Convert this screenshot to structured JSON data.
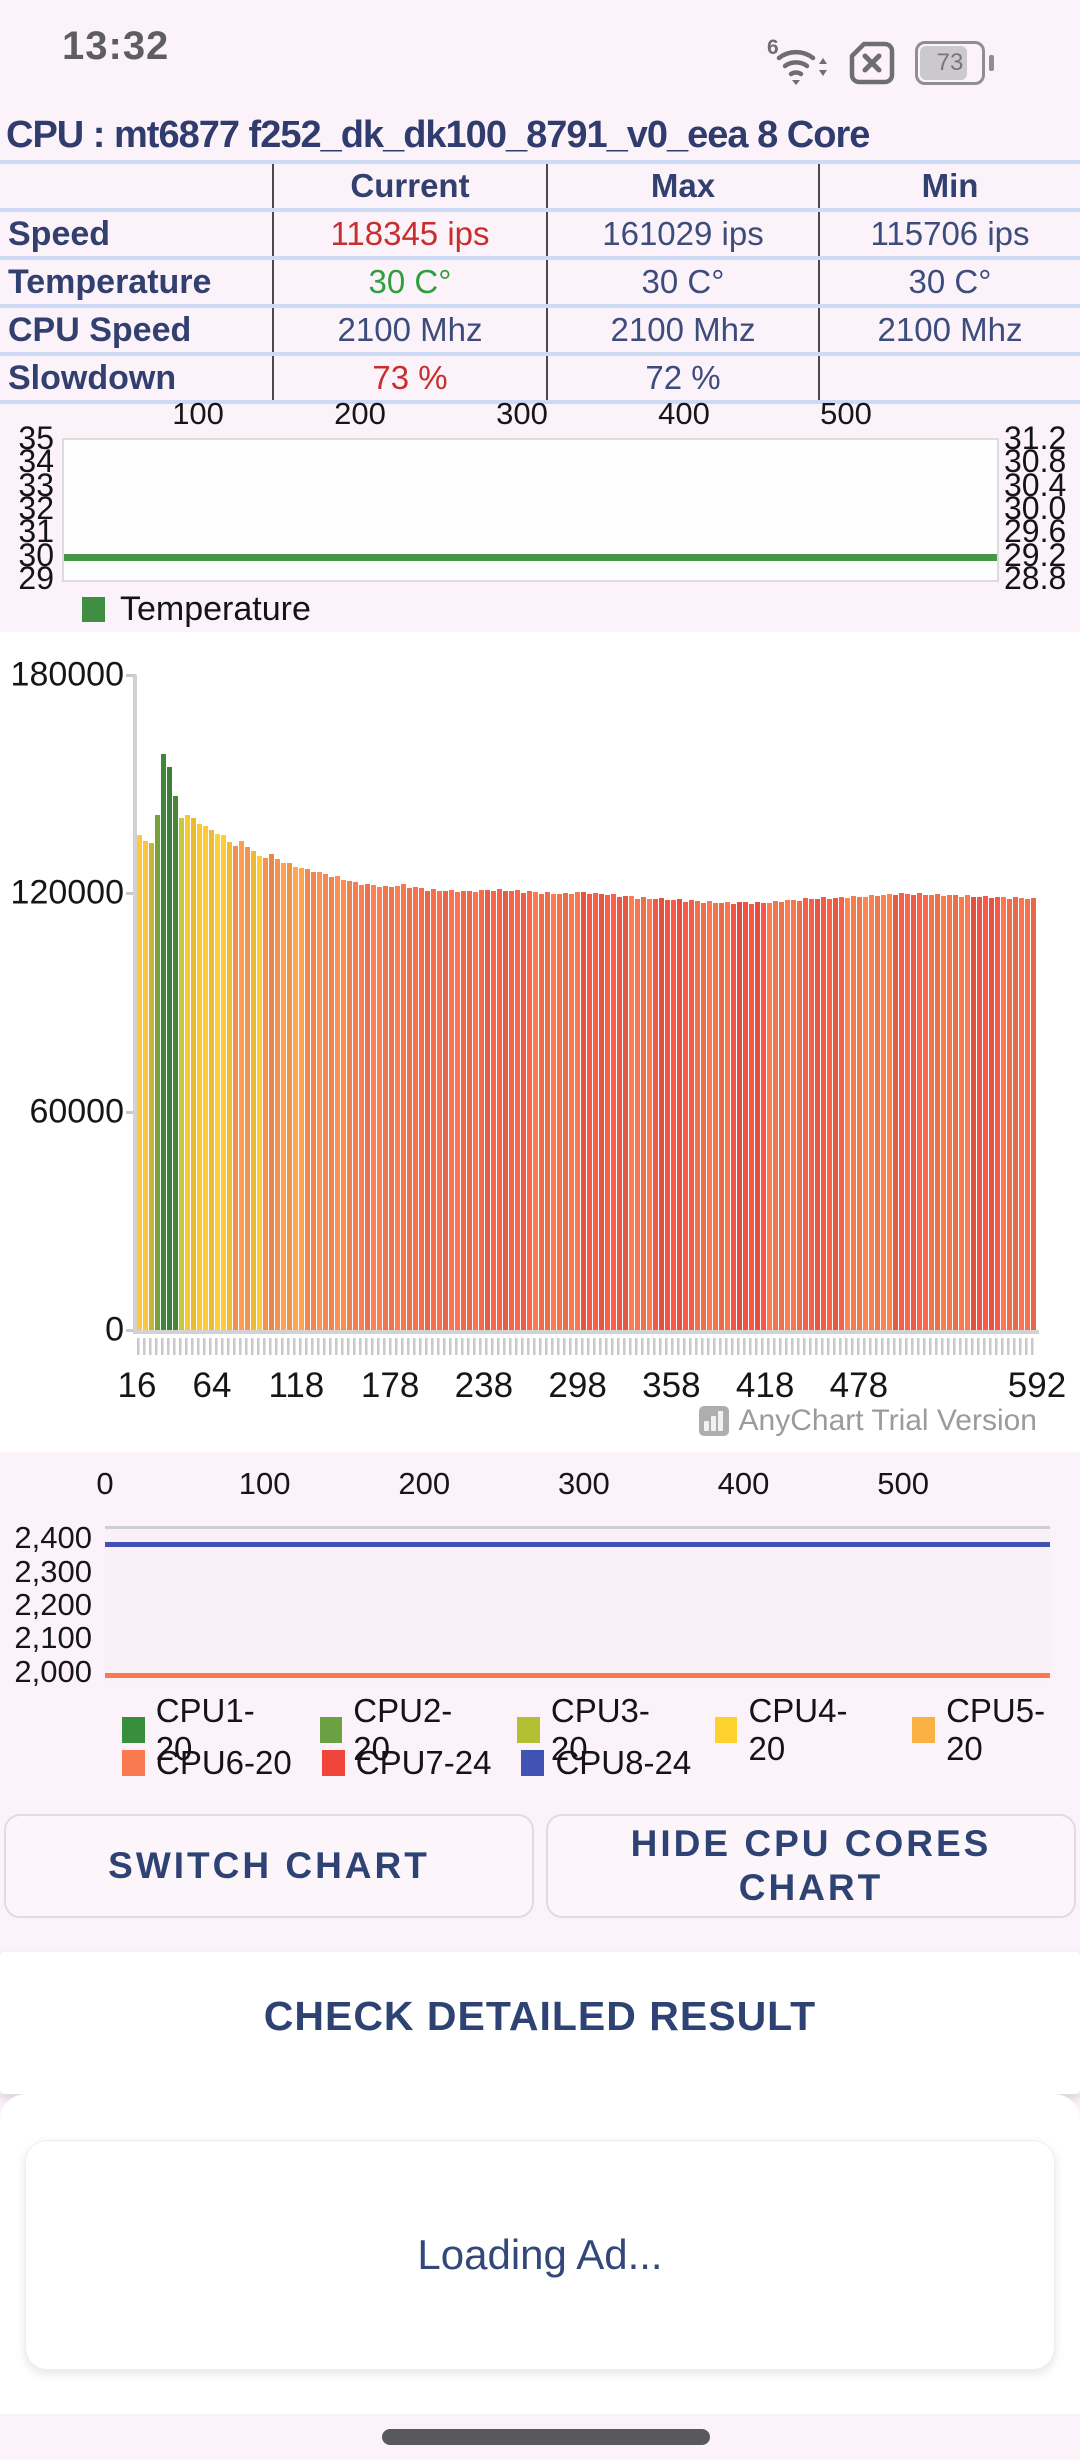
{
  "status_bar": {
    "time": "13:32",
    "battery_percent": "73",
    "icons": [
      "wifi-6-icon",
      "no-sim-icon",
      "battery-icon"
    ]
  },
  "header": {
    "title": "CPU : mt6877 f252_dk_dk100_8791_v0_eea 8 Core"
  },
  "colors": {
    "background": "#fcf3fa",
    "navy": "#32406f",
    "value_navy": "#3c4c7c",
    "alert_red": "#c62f2c",
    "ok_green": "#2f9e3c",
    "separator_blue": "#cddaf6",
    "temperature_line": "#439746",
    "watermark_gray": "#9b9b9b"
  },
  "results_table": {
    "columns": [
      "",
      "Current",
      "Max",
      "Min"
    ],
    "rows": [
      {
        "key": "speed",
        "label": "Speed",
        "current": "118345 ips",
        "max": "161029 ips",
        "min": "115706 ips",
        "current_color": "#c62f2c"
      },
      {
        "key": "temperature",
        "label": "Temperature",
        "current": "30 C°",
        "max": "30 C°",
        "min": "30 C°",
        "current_color": "#2f9e3c"
      },
      {
        "key": "cpu-speed",
        "label": "CPU Speed",
        "current": "2100 Mhz",
        "max": "2100 Mhz",
        "min": "2100 Mhz",
        "current_color": "#3c4c7c"
      },
      {
        "key": "slowdown",
        "label": "Slowdown",
        "current": "73 %",
        "max": "72 %",
        "min": "",
        "current_color": "#c62f2c"
      }
    ]
  },
  "chart_data": [
    {
      "type": "line",
      "name": "temperature-history",
      "xlim": [
        16,
        592
      ],
      "x_ticks": [
        100,
        200,
        300,
        400,
        500
      ],
      "y_left_ticks": [
        "35",
        "34",
        "33",
        "32",
        "31",
        "30",
        "29"
      ],
      "y_right_ticks": [
        "31.2",
        "30.8",
        "30.4",
        "30.0",
        "29.6",
        "29.2",
        "28.8"
      ],
      "ylim_left": [
        29,
        35
      ],
      "series": [
        {
          "name": "Temperature",
          "color": "#439746",
          "value": 30
        }
      ],
      "legend": [
        {
          "label": "Temperature",
          "color": "#3f8f43"
        }
      ],
      "grid": false,
      "legend_position": "bottom-left"
    },
    {
      "type": "bar",
      "name": "speed-history-ips",
      "xlim": [
        16,
        592
      ],
      "ylim": [
        0,
        180000
      ],
      "y_ticks": [
        180000,
        120000,
        60000,
        0
      ],
      "x_ticks": [
        16,
        64,
        118,
        178,
        238,
        298,
        358,
        418,
        478,
        592
      ],
      "bar_count": 150,
      "peak_value": 161000,
      "points": [
        [
          16,
          136000
        ],
        [
          20,
          134000
        ],
        [
          23,
          133500
        ],
        [
          26,
          136000
        ],
        [
          29,
          146000
        ],
        [
          32,
          161000
        ],
        [
          34,
          159000
        ],
        [
          36,
          153000
        ],
        [
          38,
          149000
        ],
        [
          40,
          144500
        ],
        [
          43,
          141000
        ],
        [
          47,
          141500
        ],
        [
          52,
          140000
        ],
        [
          58,
          138500
        ],
        [
          64,
          137000
        ],
        [
          70,
          135800
        ],
        [
          74,
          134200
        ],
        [
          77,
          133000
        ],
        [
          80,
          133800
        ],
        [
          83,
          134500
        ],
        [
          86,
          132800
        ],
        [
          90,
          131200
        ],
        [
          94,
          130000
        ],
        [
          97,
          130000
        ],
        [
          100,
          130800
        ],
        [
          103,
          130000
        ],
        [
          107,
          128800
        ],
        [
          112,
          128000
        ],
        [
          118,
          127200
        ],
        [
          124,
          126400
        ],
        [
          130,
          126000
        ],
        [
          136,
          125200
        ],
        [
          142,
          124600
        ],
        [
          148,
          123800
        ],
        [
          152,
          123200
        ],
        [
          158,
          122600
        ],
        [
          164,
          122200
        ],
        [
          170,
          122000
        ],
        [
          176,
          121600
        ],
        [
          182,
          122000
        ],
        [
          186,
          122400
        ],
        [
          190,
          121800
        ],
        [
          198,
          121200
        ],
        [
          208,
          120800
        ],
        [
          218,
          120600
        ],
        [
          228,
          120400
        ],
        [
          238,
          120800
        ],
        [
          248,
          121000
        ],
        [
          258,
          120600
        ],
        [
          268,
          120300
        ],
        [
          278,
          120000
        ],
        [
          288,
          119800
        ],
        [
          298,
          120200
        ],
        [
          308,
          120000
        ],
        [
          320,
          119600
        ],
        [
          332,
          119000
        ],
        [
          344,
          118600
        ],
        [
          356,
          118400
        ],
        [
          368,
          118000
        ],
        [
          380,
          117600
        ],
        [
          392,
          117400
        ],
        [
          404,
          117600
        ],
        [
          416,
          117300
        ],
        [
          428,
          117800
        ],
        [
          440,
          118200
        ],
        [
          452,
          118500
        ],
        [
          464,
          118800
        ],
        [
          478,
          119000
        ],
        [
          490,
          119300
        ],
        [
          505,
          119800
        ],
        [
          520,
          119900
        ],
        [
          535,
          119500
        ],
        [
          550,
          119200
        ],
        [
          565,
          119000
        ],
        [
          580,
          118800
        ],
        [
          592,
          118400
        ]
      ],
      "color_bands": [
        [
          16,
          20,
          "#f3bc3c"
        ],
        [
          20,
          23,
          "#f1a84b"
        ],
        [
          23,
          26,
          "#cdbc3e"
        ],
        [
          26,
          29,
          "#7ba43c"
        ],
        [
          29,
          37,
          "#3d8038"
        ],
        [
          37,
          40,
          "#4c8c39"
        ],
        [
          40,
          42,
          "#6fa03c"
        ],
        [
          42,
          44,
          "#bcc13d"
        ],
        [
          44,
          74,
          "#f6c433"
        ],
        [
          74,
          77,
          "#f5b53e"
        ],
        [
          77,
          86,
          "#f6944e"
        ],
        [
          86,
          97,
          "#f6c433"
        ],
        [
          97,
          105,
          "#f58e4d"
        ],
        [
          105,
          122,
          "#f79d4b"
        ],
        [
          122,
          152,
          "#f78b52"
        ],
        [
          152,
          190,
          "#f47950"
        ],
        [
          190,
          240,
          "#f36c4c"
        ],
        [
          240,
          270,
          "#f2624a"
        ],
        [
          270,
          300,
          "#f4734d"
        ],
        [
          300,
          330,
          "#f05a45"
        ],
        [
          330,
          345,
          "#f4774f"
        ],
        [
          345,
          375,
          "#ef5544"
        ],
        [
          375,
          395,
          "#f4734d"
        ],
        [
          395,
          420,
          "#ee5243"
        ],
        [
          420,
          445,
          "#f4764f"
        ],
        [
          445,
          470,
          "#f05c46"
        ],
        [
          470,
          500,
          "#f5804f"
        ],
        [
          500,
          525,
          "#f16049"
        ],
        [
          525,
          550,
          "#f4764d"
        ],
        [
          550,
          570,
          "#ef5544"
        ],
        [
          570,
          593,
          "#f3704c"
        ]
      ],
      "watermark": {
        "text": "AnyChart Trial Version",
        "icon": "bar-chart-icon"
      }
    },
    {
      "type": "line",
      "name": "cpu-cores-frequency-mhz",
      "xlim": [
        0,
        592
      ],
      "x_ticks": [
        0,
        100,
        200,
        300,
        400,
        500
      ],
      "y_ticks": [
        "2,400",
        "2,300",
        "2,200",
        "2,100",
        "2,000"
      ],
      "ylim": [
        1982,
        2436
      ],
      "series": [
        {
          "name": "CPU1-20",
          "color": "#388e3c",
          "value": 2000
        },
        {
          "name": "CPU2-20",
          "color": "#6ba043",
          "value": 2000
        },
        {
          "name": "CPU3-20",
          "color": "#b3c034",
          "value": 2000
        },
        {
          "name": "CPU4-20",
          "color": "#fdd22f",
          "value": 2000
        },
        {
          "name": "CPU5-20",
          "color": "#f9b143",
          "value": 2000
        },
        {
          "name": "CPU6-20",
          "color": "#f97a50",
          "value": 2000
        },
        {
          "name": "CPU7-24",
          "color": "#ef453a",
          "value": 2390
        },
        {
          "name": "CPU8-24",
          "color": "#4053b4",
          "value": 2390
        }
      ],
      "legend_rows": [
        5,
        3
      ],
      "legend_position": "bottom-left"
    }
  ],
  "buttons": {
    "switch_chart": "SWITCH CHART",
    "hide_cpu_cores": "HIDE CPU CORES CHART"
  },
  "check_result": {
    "label": "CHECK DETAILED RESULT"
  },
  "ad": {
    "text": "Loading Ad..."
  }
}
